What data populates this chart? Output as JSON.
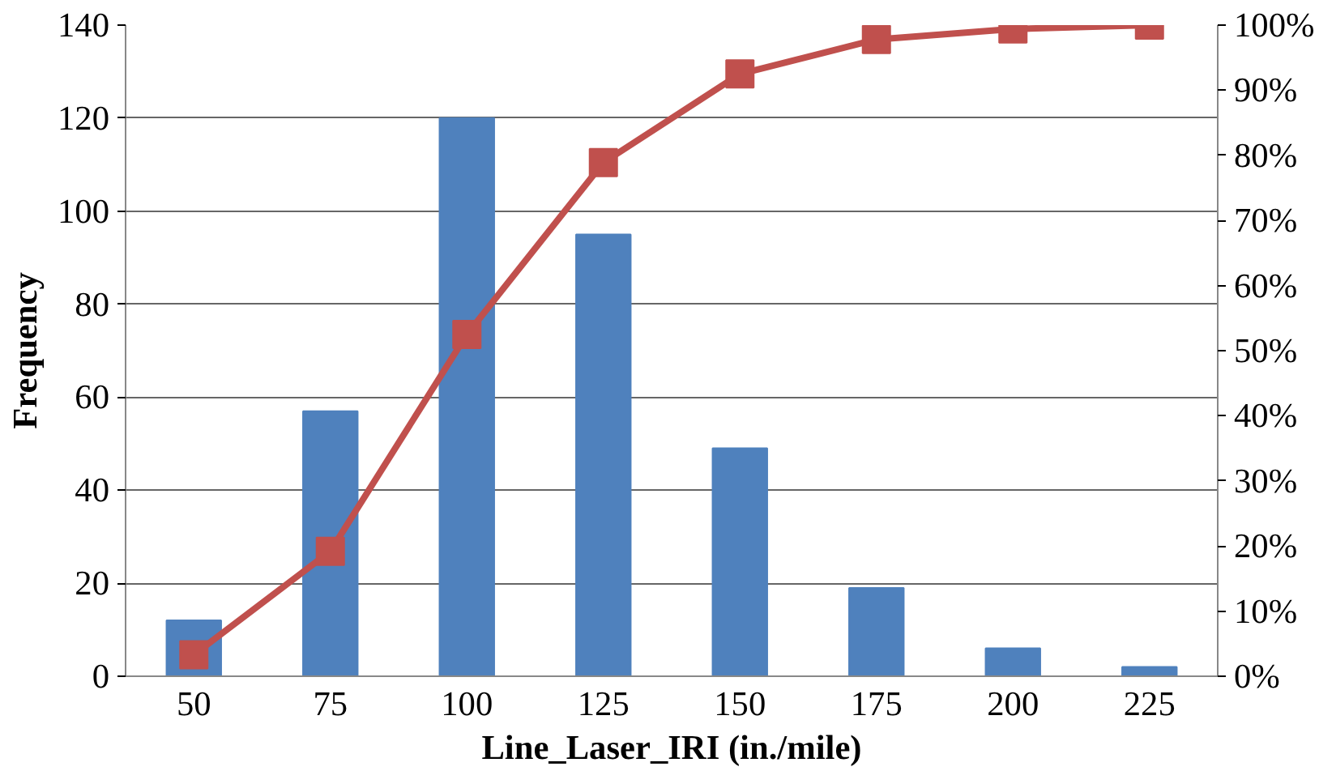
{
  "chart_data": {
    "type": "bar",
    "xlabel": "Line_Laser_IRI (in./mile)",
    "ylabel": "Frequency",
    "categories": [
      "50",
      "75",
      "100",
      "125",
      "150",
      "175",
      "200",
      "225"
    ],
    "series": [
      {
        "color": "#4f81bd",
        "values": [
          12,
          57,
          120,
          95,
          49,
          19,
          6,
          2
        ]
      },
      {
        "type": "line",
        "axis": "y2",
        "color": "#c0504d",
        "marker": "square",
        "line_style": "solid",
        "values": [
          3.3,
          19.2,
          52.5,
          78.9,
          92.5,
          97.8,
          99.4,
          100
        ]
      }
    ],
    "ylim": [
      0,
      140
    ],
    "yticks": [
      0,
      20,
      40,
      60,
      80,
      100,
      120,
      140
    ],
    "y2lim": [
      0,
      100
    ],
    "y2ticks": [
      {
        "value": 0,
        "label": "0%"
      },
      {
        "value": 10,
        "label": "10%"
      },
      {
        "value": 20,
        "label": "20%"
      },
      {
        "value": 30,
        "label": "30%"
      },
      {
        "value": 40,
        "label": "40%"
      },
      {
        "value": 50,
        "label": "50%"
      },
      {
        "value": 60,
        "label": "60%"
      },
      {
        "value": 70,
        "label": "70%"
      },
      {
        "value": 80,
        "label": "80%"
      },
      {
        "value": 90,
        "label": "90%"
      },
      {
        "value": 100,
        "label": "100%"
      }
    ],
    "grid": "y"
  }
}
